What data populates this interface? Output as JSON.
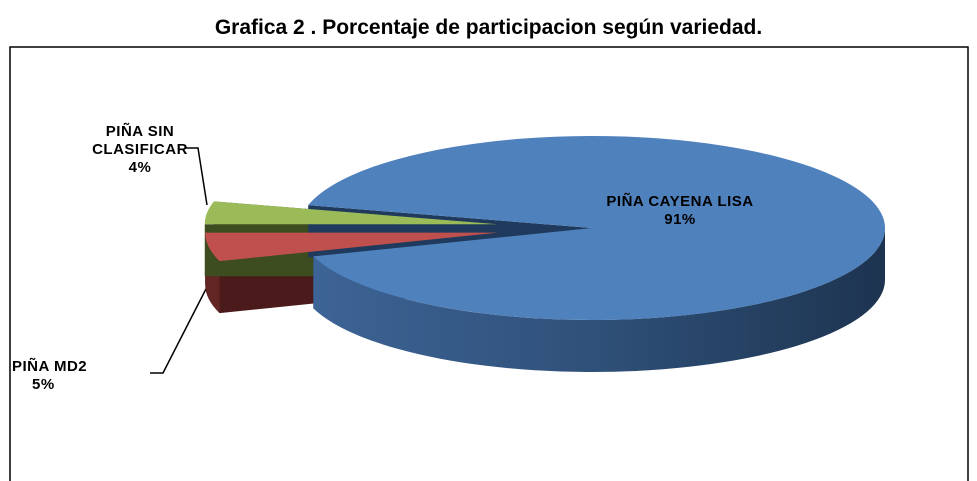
{
  "chart_data": {
    "type": "pie3d",
    "title": "Grafica 2 . Porcentaje de participacion según variedad.",
    "categories": [
      "PIÑA CAYENA LISA",
      "PIÑA MD2",
      "PIÑA SIN CLASIFICAR"
    ],
    "values": [
      91,
      5,
      4
    ],
    "value_labels": [
      "91%",
      "5%",
      "4%"
    ],
    "colors": [
      "#4f81bd",
      "#c0504d",
      "#9bbb59"
    ]
  }
}
